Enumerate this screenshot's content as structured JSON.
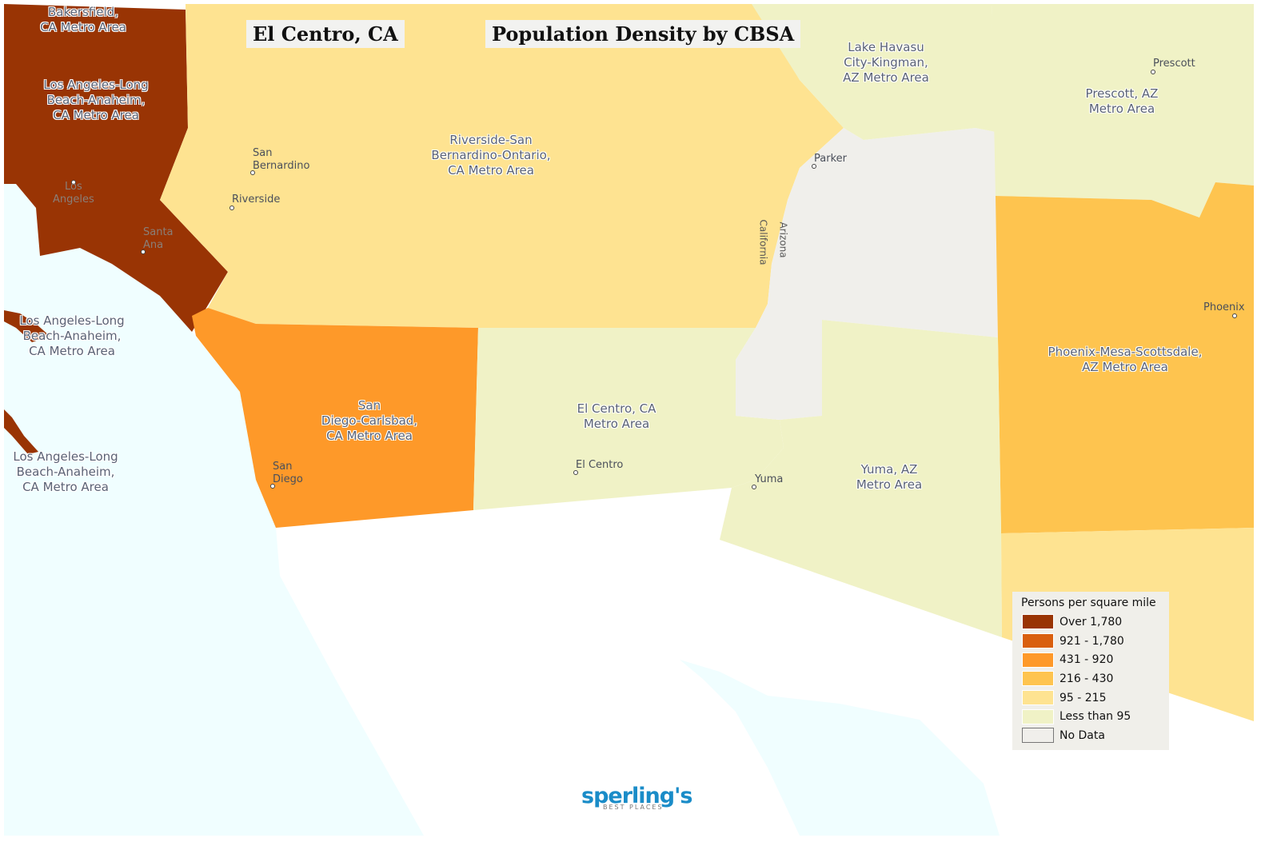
{
  "titles": {
    "location": "El Centro, CA",
    "map_title": "Population Density by CBSA"
  },
  "colors": {
    "over_1780": "#993404",
    "921_1780": "#d95f0e",
    "431_920": "#fe9929",
    "216_430": "#fec44f",
    "95_215": "#fee391",
    "lt_95": "#f0f2c6",
    "no_data": "#f0efeb",
    "water": "#f0feff"
  },
  "regions": {
    "bakersfield": "Bakersfield,\nCA Metro Area",
    "la_main": "Los Angeles-Long\nBeach-Anaheim,\nCA Metro Area",
    "la_island1": "Los Angeles-Long\nBeach-Anaheim,\nCA Metro Area",
    "la_island2": "Los Angeles-Long\nBeach-Anaheim,\nCA Metro Area",
    "riverside": "Riverside-San\nBernardino-Ontario,\nCA Metro Area",
    "san_diego": "San\nDiego-Carlsbad,\nCA Metro Area",
    "el_centro": "El Centro, CA\nMetro Area",
    "lake_havasu": "Lake Havasu\nCity-Kingman,\nAZ Metro Area",
    "prescott": "Prescott, AZ\nMetro Area",
    "phoenix": "Phoenix-Mesa-Scottsdale,\nAZ Metro Area",
    "yuma": "Yuma, AZ\nMetro Area"
  },
  "cities": {
    "san_bernardino": "San\nBernardino",
    "riverside": "Riverside",
    "los_angeles": "Los\nAngeles",
    "santa_ana": "Santa\nAna",
    "san_diego": "San\nDiego",
    "el_centro": "El Centro",
    "yuma": "Yuma",
    "parker": "Parker",
    "prescott": "Prescott",
    "phoenix": "Phoenix"
  },
  "states": {
    "california": "California",
    "arizona": "Arizona"
  },
  "legend": {
    "title": "Persons per square mile",
    "items": [
      {
        "label": "Over 1,780",
        "color": "#993404"
      },
      {
        "label": "921 - 1,780",
        "color": "#d95f0e"
      },
      {
        "label": "431 - 920",
        "color": "#fe9929"
      },
      {
        "label": "216 - 430",
        "color": "#fec44f"
      },
      {
        "label": "95 - 215",
        "color": "#fee391"
      },
      {
        "label": "Less than 95",
        "color": "#f0f2c6"
      },
      {
        "label": "No Data",
        "color": "#f0efeb"
      }
    ]
  },
  "logo": {
    "name": "sperling's",
    "tagline": "BEST PLACES"
  }
}
